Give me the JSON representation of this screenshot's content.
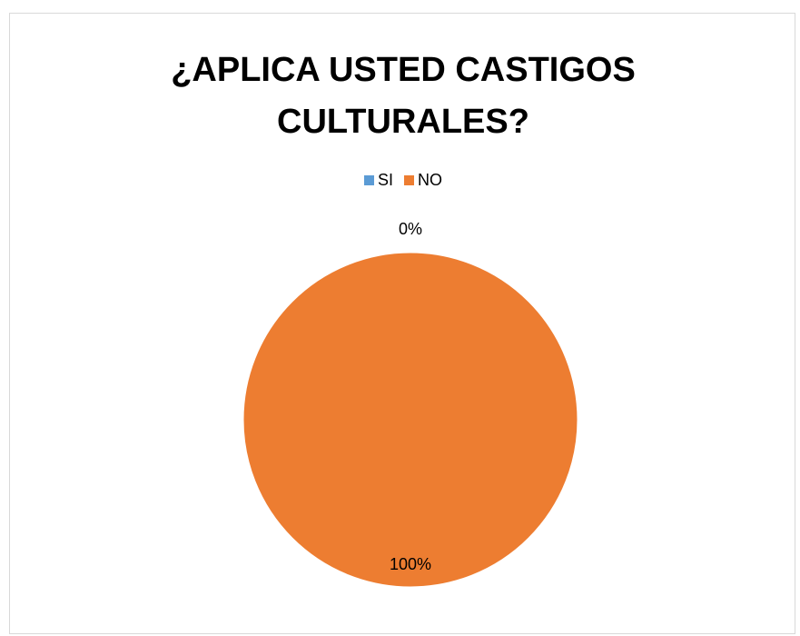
{
  "chart_data": {
    "type": "pie",
    "title_lines": [
      "¿APLICA USTED CASTIGOS",
      "CULTURALES?"
    ],
    "categories": [
      "SI",
      "NO"
    ],
    "values": [
      0,
      100
    ],
    "data_labels": [
      "0%",
      "100%"
    ],
    "colors": [
      "#5b9bd5",
      "#ed7d31"
    ],
    "legend_position": "top"
  }
}
